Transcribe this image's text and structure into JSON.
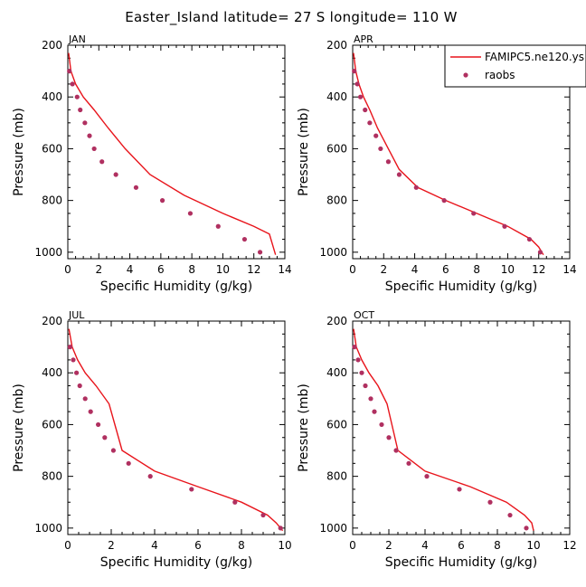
{
  "title": "Easter_Island  latitude= 27 S longitude= 110 W",
  "colors": {
    "model_line": "#e8141b",
    "obs_dot": "#b03060",
    "axis": "#000000"
  },
  "legend": {
    "entries": [
      "FAMIPC5.ne120.ys",
      "raobs"
    ]
  },
  "chart_data": [
    {
      "type": "line",
      "panel": "JAN",
      "xlabel": "Specific Humidity (g/kg)",
      "ylabel": "Pressure (mb)",
      "xlim": [
        0,
        14
      ],
      "ylim": [
        200,
        1025
      ],
      "y_inverted": true,
      "xticks": [
        "0",
        "2",
        "4",
        "6",
        "8",
        "10",
        "12",
        "14"
      ],
      "yticks": [
        "200",
        "400",
        "600",
        "800",
        "1000"
      ],
      "series": [
        {
          "name": "FAMIPC5.ne120.ys",
          "style": "line",
          "x": [
            0.05,
            0.2,
            0.5,
            1.0,
            1.7,
            2.6,
            3.7,
            5.3,
            7.5,
            10.0,
            12.0,
            13.0,
            13.4
          ],
          "y": [
            230,
            300,
            350,
            400,
            450,
            520,
            600,
            700,
            780,
            850,
            900,
            930,
            1010
          ]
        },
        {
          "name": "raobs",
          "style": "markers",
          "x": [
            0.1,
            0.3,
            0.6,
            0.8,
            1.1,
            1.4,
            1.7,
            2.2,
            3.1,
            4.4,
            6.1,
            7.9,
            9.7,
            11.4,
            12.4
          ],
          "y": [
            300,
            350,
            400,
            450,
            500,
            550,
            600,
            650,
            700,
            750,
            800,
            850,
            900,
            950,
            1000
          ]
        }
      ]
    },
    {
      "type": "line",
      "panel": "APR",
      "xlabel": "Specific Humidity (g/kg)",
      "ylabel": "Pressure (mb)",
      "xlim": [
        0,
        14
      ],
      "ylim": [
        200,
        1025
      ],
      "y_inverted": true,
      "xticks": [
        "0",
        "2",
        "4",
        "6",
        "8",
        "10",
        "12",
        "14"
      ],
      "yticks": [
        "200",
        "400",
        "600",
        "800",
        "1000"
      ],
      "series": [
        {
          "name": "FAMIPC5.ne120.ys",
          "style": "line",
          "x": [
            0.05,
            0.2,
            0.4,
            0.7,
            1.1,
            1.6,
            2.3,
            3.0,
            4.2,
            6.0,
            8.0,
            10.0,
            11.5,
            12.0,
            12.3
          ],
          "y": [
            230,
            300,
            350,
            400,
            450,
            520,
            600,
            680,
            750,
            800,
            850,
            900,
            950,
            980,
            1010
          ]
        },
        {
          "name": "raobs",
          "style": "markers",
          "x": [
            0.1,
            0.3,
            0.5,
            0.8,
            1.1,
            1.5,
            1.8,
            2.3,
            3.0,
            4.1,
            5.9,
            7.8,
            9.8,
            11.4,
            12.1
          ],
          "y": [
            300,
            350,
            400,
            450,
            500,
            550,
            600,
            650,
            700,
            750,
            800,
            850,
            900,
            950,
            1000
          ]
        }
      ]
    },
    {
      "type": "line",
      "panel": "JUL",
      "xlabel": "Specific Humidity (g/kg)",
      "ylabel": "Pressure (mb)",
      "xlim": [
        0,
        10
      ],
      "ylim": [
        200,
        1025
      ],
      "y_inverted": true,
      "xticks": [
        "0",
        "2",
        "4",
        "6",
        "8",
        "10"
      ],
      "yticks": [
        "200",
        "400",
        "600",
        "800",
        "1000"
      ],
      "series": [
        {
          "name": "FAMIPC5.ne120.ys",
          "style": "line",
          "x": [
            0.05,
            0.2,
            0.45,
            0.8,
            1.3,
            1.9,
            2.5,
            4.0,
            6.0,
            8.0,
            9.2,
            9.6,
            9.9
          ],
          "y": [
            230,
            300,
            350,
            400,
            450,
            520,
            700,
            780,
            840,
            900,
            950,
            980,
            1010
          ]
        },
        {
          "name": "raobs",
          "style": "markers",
          "x": [
            0.1,
            0.25,
            0.4,
            0.55,
            0.8,
            1.05,
            1.4,
            1.7,
            2.1,
            2.8,
            3.8,
            5.7,
            7.7,
            9.0,
            9.8
          ],
          "y": [
            300,
            350,
            400,
            450,
            500,
            550,
            600,
            650,
            700,
            750,
            800,
            850,
            900,
            950,
            1000
          ]
        }
      ]
    },
    {
      "type": "line",
      "panel": "OCT",
      "xlabel": "Specific Humidity (g/kg)",
      "ylabel": "Pressure (mb)",
      "xlim": [
        0,
        12
      ],
      "ylim": [
        200,
        1025
      ],
      "y_inverted": true,
      "xticks": [
        "0",
        "2",
        "4",
        "6",
        "8",
        "10",
        "12"
      ],
      "yticks": [
        "200",
        "400",
        "600",
        "800",
        "1000"
      ],
      "series": [
        {
          "name": "FAMIPC5.ne120.ys",
          "style": "line",
          "x": [
            0.05,
            0.2,
            0.5,
            0.9,
            1.4,
            1.9,
            2.5,
            4.0,
            6.5,
            8.5,
            9.5,
            9.9,
            10.0
          ],
          "y": [
            230,
            300,
            350,
            400,
            450,
            520,
            700,
            780,
            840,
            900,
            950,
            980,
            1010
          ]
        },
        {
          "name": "raobs",
          "style": "markers",
          "x": [
            0.1,
            0.3,
            0.5,
            0.7,
            1.0,
            1.2,
            1.6,
            2.0,
            2.4,
            3.1,
            4.1,
            5.9,
            7.6,
            8.7,
            9.6
          ],
          "y": [
            300,
            350,
            400,
            450,
            500,
            550,
            600,
            650,
            700,
            750,
            800,
            850,
            900,
            950,
            1000
          ]
        }
      ]
    }
  ]
}
